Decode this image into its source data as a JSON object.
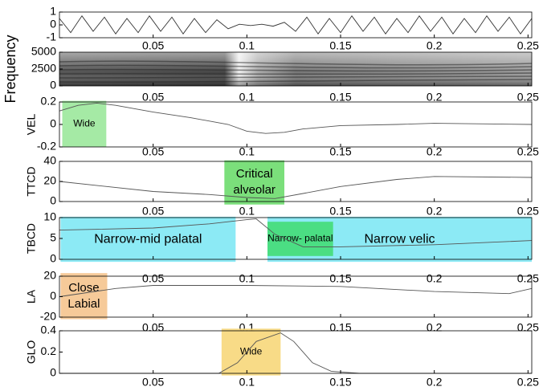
{
  "chart_data": [
    {
      "type": "line",
      "ylim": [
        -1,
        1
      ],
      "yticks": [
        -1,
        0,
        1
      ],
      "xlim": [
        0,
        0.252
      ],
      "xticks": [
        0.05,
        0.1,
        0.15,
        0.2,
        0.25
      ],
      "series": [
        {
          "color": "#333333",
          "x": [
            0,
            0.006,
            0.012,
            0.018,
            0.024,
            0.03,
            0.036,
            0.042,
            0.048,
            0.054,
            0.06,
            0.066,
            0.072,
            0.078,
            0.084,
            0.09,
            0.096,
            0.102,
            0.108,
            0.114,
            0.12,
            0.126,
            0.132,
            0.138,
            0.144,
            0.15,
            0.156,
            0.162,
            0.168,
            0.174,
            0.18,
            0.186,
            0.192,
            0.198,
            0.204,
            0.21,
            0.216,
            0.222,
            0.228,
            0.234,
            0.24,
            0.246,
            0.252
          ],
          "values": [
            0.5,
            -0.6,
            0.7,
            -0.5,
            0.6,
            -0.7,
            0.5,
            -0.6,
            0.7,
            -0.5,
            0.6,
            -0.7,
            0.5,
            -0.6,
            0.4,
            -0.3,
            0.05,
            -0.05,
            0.05,
            -0.1,
            0.2,
            -0.5,
            0.6,
            -0.7,
            0.5,
            -0.6,
            0.7,
            -0.5,
            0.6,
            -0.7,
            0.5,
            -0.6,
            0.7,
            -0.5,
            0.6,
            -0.7,
            0.5,
            -0.6,
            0.7,
            -0.5,
            0.6,
            -0.7,
            0.5
          ]
        }
      ],
      "annotations": []
    },
    {
      "type": "spectrogram",
      "ylabel": "Frequency",
      "ylim": [
        0,
        5000
      ],
      "yticks": [
        0,
        2500,
        5000
      ],
      "xlim": [
        0,
        0.252
      ],
      "xticks": [
        0.05,
        0.1,
        0.15,
        0.2,
        0.25
      ],
      "series": [],
      "annotations": []
    },
    {
      "type": "line",
      "ylabel": "VEL",
      "ylim": [
        -0.2,
        0.2
      ],
      "yticks": [
        -0.2,
        0,
        0.2
      ],
      "xlim": [
        0,
        0.252
      ],
      "xticks": [
        0.05,
        0.1,
        0.15,
        0.2,
        0.25
      ],
      "series": [
        {
          "color": "#555555",
          "x": [
            0,
            0.01,
            0.02,
            0.03,
            0.05,
            0.07,
            0.09,
            0.1,
            0.11,
            0.12,
            0.13,
            0.15,
            0.18,
            0.2,
            0.252
          ],
          "values": [
            0.12,
            0.17,
            0.19,
            0.17,
            0.11,
            0.06,
            0.0,
            -0.06,
            -0.08,
            -0.07,
            -0.04,
            -0.01,
            0.0,
            0.01,
            0.0
          ]
        }
      ],
      "annotations": [
        {
          "text": [
            "Wide"
          ],
          "color": "#9be89b",
          "xlim": [
            0.0015,
            0.025
          ],
          "ylim": [
            -0.2,
            0.21
          ]
        }
      ]
    },
    {
      "type": "line",
      "ylabel": "TTCD",
      "ylim": [
        0,
        40
      ],
      "yticks": [
        0,
        20,
        40
      ],
      "xlim": [
        0,
        0.252
      ],
      "xticks": [
        0.05,
        0.1,
        0.15,
        0.2,
        0.25
      ],
      "series": [
        {
          "color": "#555555",
          "x": [
            0,
            0.05,
            0.08,
            0.1,
            0.115,
            0.13,
            0.15,
            0.18,
            0.2,
            0.252
          ],
          "values": [
            20,
            10,
            7,
            4,
            3,
            8,
            15,
            22,
            25,
            24
          ]
        }
      ],
      "annotations": [
        {
          "text": [
            "Critical",
            "alveolar"
          ],
          "color": "#6ddc6d",
          "xlim": [
            0.088,
            0.12
          ],
          "ylim": [
            -3,
            41
          ]
        }
      ]
    },
    {
      "type": "line",
      "ylabel": "TBCD",
      "ylim": [
        0,
        10
      ],
      "yticks": [
        0,
        5,
        10
      ],
      "xlim": [
        0,
        0.252
      ],
      "xticks": [
        0.05,
        0.1,
        0.15,
        0.2,
        0.25
      ],
      "series": [
        {
          "color": "#555555",
          "x": [
            0,
            0.05,
            0.08,
            0.1,
            0.105,
            0.115,
            0.13,
            0.15,
            0.2,
            0.252
          ],
          "values": [
            7,
            7.5,
            8.5,
            9.5,
            9.7,
            6,
            3,
            3,
            3.5,
            4.5
          ]
        }
      ],
      "annotations": [
        {
          "text": [
            "Narrow-mid palatal"
          ],
          "color": "#7fe8f4",
          "xlim": [
            0.0006,
            0.094
          ],
          "ylim": [
            -0.6,
            10.2
          ]
        },
        {
          "text": [
            "Narrow velic"
          ],
          "color": "#7fe8f4",
          "xlim": [
            0.111,
            0.252
          ],
          "ylim": [
            -0.6,
            10.2
          ]
        },
        {
          "text": [
            "Narrow- palatal"
          ],
          "color": "#44dd77",
          "xlim": [
            0.111,
            0.146
          ],
          "ylim": [
            0.8,
            9
          ]
        }
      ]
    },
    {
      "type": "line",
      "ylabel": "LA",
      "ylim": [
        -20,
        20
      ],
      "yticks": [
        -20,
        0,
        20
      ],
      "xlim": [
        0,
        0.252
      ],
      "xticks": [
        0.05,
        0.1,
        0.15,
        0.2,
        0.25
      ],
      "series": [
        {
          "color": "#555555",
          "x": [
            0,
            0.03,
            0.05,
            0.1,
            0.15,
            0.2,
            0.24,
            0.252
          ],
          "values": [
            0,
            8,
            11,
            11,
            10,
            5,
            3,
            8
          ]
        }
      ],
      "annotations": [
        {
          "text": [
            "Close",
            "Labial"
          ],
          "color": "#f5c48e",
          "xlim": [
            0.0006,
            0.0255
          ],
          "ylim": [
            -22,
            23
          ]
        }
      ]
    },
    {
      "type": "line",
      "ylabel": "GLO",
      "ylim": [
        0,
        0.4
      ],
      "yticks": [
        0,
        0.2,
        0.4
      ],
      "xlim": [
        0,
        0.252
      ],
      "xticks": [
        0.05,
        0.1,
        0.15,
        0.2,
        0.25
      ],
      "series": [
        {
          "color": "#555555",
          "x": [
            0,
            0.085,
            0.095,
            0.105,
            0.118,
            0.125,
            0.135,
            0.145,
            0.16,
            0.252
          ],
          "values": [
            0,
            0,
            0.1,
            0.3,
            0.38,
            0.3,
            0.1,
            0.02,
            0,
            0
          ]
        }
      ],
      "annotations": [
        {
          "text": [
            "Wide"
          ],
          "color": "#f7d77a",
          "xlim": [
            0.0865,
            0.118
          ],
          "ylim": [
            -0.02,
            0.42
          ]
        }
      ]
    }
  ]
}
